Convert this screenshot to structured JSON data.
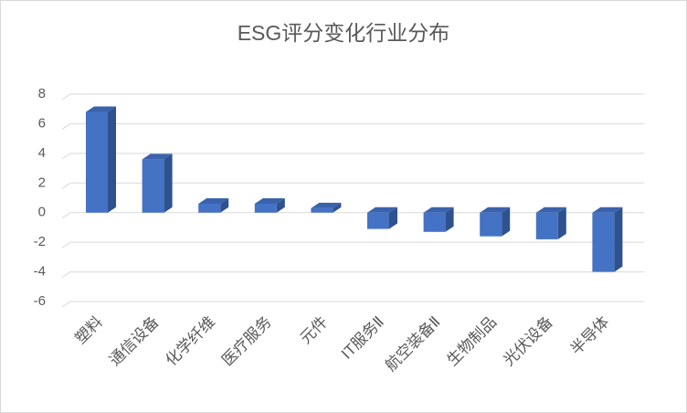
{
  "chart_data": {
    "type": "bar",
    "title": "ESG评分变化行业分布",
    "categories": [
      "塑料",
      "通信设备",
      "化学纤维",
      "医疗服务",
      "元件",
      "IT服务Ⅱ",
      "航空装备Ⅱ",
      "生物制品",
      "光伏设备",
      "半导体"
    ],
    "values": [
      6.8,
      3.6,
      0.6,
      0.6,
      0.3,
      -1.1,
      -1.3,
      -1.6,
      -1.8,
      -4.0
    ],
    "color": "#4472c4",
    "ylim": [
      -6,
      8
    ],
    "yticks": [
      -6,
      -4,
      -2,
      0,
      2,
      4,
      6,
      8
    ],
    "grid": true
  }
}
